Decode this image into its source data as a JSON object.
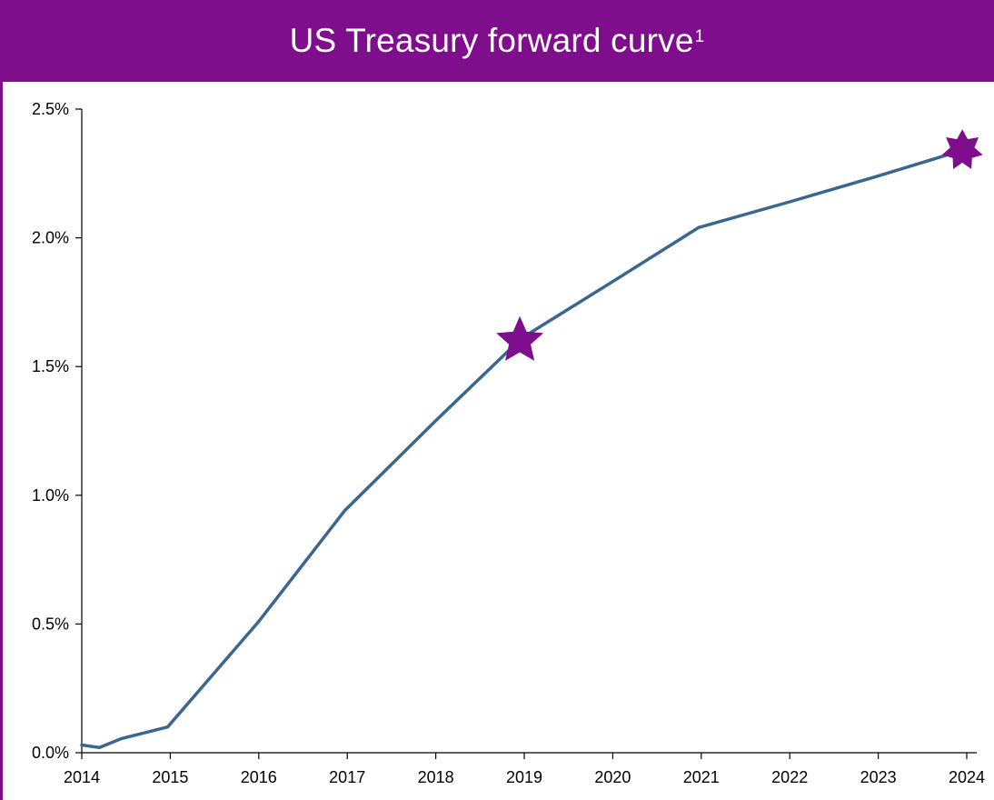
{
  "chart_data": {
    "type": "line",
    "title": "US Treasury forward curve",
    "title_footnote": "1",
    "xlabel": "",
    "ylabel": "",
    "x_ticks": [
      "2014",
      "2015",
      "2016",
      "2017",
      "2018",
      "2019",
      "2020",
      "2021",
      "2022",
      "2023",
      "2024"
    ],
    "y_ticks": [
      "0.0%",
      "0.5%",
      "1.0%",
      "1.5%",
      "2.0%",
      "2.5%"
    ],
    "xlim": [
      2014,
      2024.1
    ],
    "ylim": [
      0,
      2.5
    ],
    "grid": false,
    "series": [
      {
        "color": "#3a6690",
        "points": [
          [
            2014.0,
            0.03
          ],
          [
            2014.2,
            0.02
          ],
          [
            2014.45,
            0.055
          ],
          [
            2014.97,
            0.1
          ],
          [
            2016.0,
            0.51
          ],
          [
            2016.97,
            0.94
          ],
          [
            2018.0,
            1.29
          ],
          [
            2018.97,
            1.61
          ],
          [
            2020.0,
            1.83
          ],
          [
            2020.97,
            2.04
          ],
          [
            2022.0,
            2.14
          ],
          [
            2023.0,
            2.24
          ],
          [
            2023.95,
            2.34
          ]
        ]
      }
    ],
    "markers": [
      {
        "shape": "star-5",
        "x": 2018.95,
        "y": 1.6,
        "color": "#7f0e8c"
      },
      {
        "shape": "star-7",
        "x": 2023.95,
        "y": 2.34,
        "color": "#7f0e8c"
      }
    ]
  }
}
